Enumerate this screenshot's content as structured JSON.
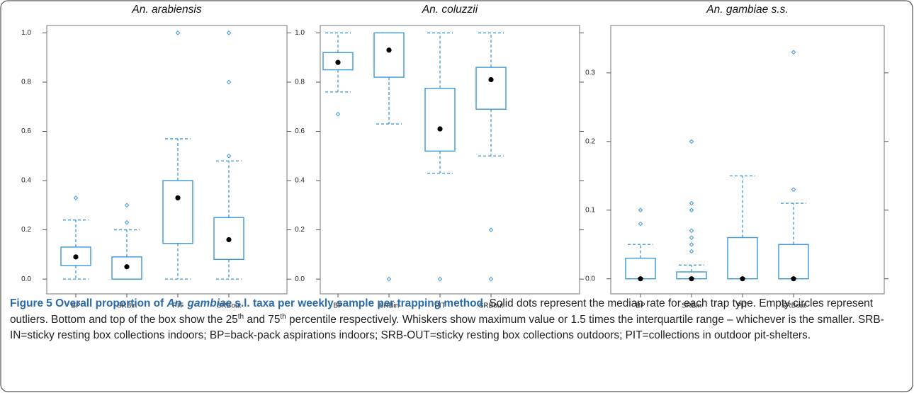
{
  "chart_data": [
    {
      "type": "box",
      "title": "An. arabiensis",
      "categories": [
        "BP",
        "SRBin",
        "PIT",
        "SRBout"
      ],
      "boxes": [
        {
          "whisker_low": 0,
          "q1": 0.055,
          "median": 0.09,
          "q3": 0.13,
          "whisker_high": 0.24,
          "outliers": [
            0.33
          ]
        },
        {
          "whisker_low": 0,
          "q1": 0,
          "median": 0.05,
          "q3": 0.09,
          "whisker_high": 0.2,
          "outliers": [
            0.23,
            0.3
          ]
        },
        {
          "whisker_low": 0,
          "q1": 0.145,
          "median": 0.33,
          "q3": 0.4,
          "whisker_high": 0.57,
          "outliers": [
            1.0
          ]
        },
        {
          "whisker_low": 0,
          "q1": 0.08,
          "median": 0.16,
          "q3": 0.25,
          "whisker_high": 0.48,
          "outliers": [
            0.5,
            0.8,
            1.0
          ]
        }
      ],
      "color": "#3a98d8",
      "ylim": [
        -0.06,
        1.03
      ],
      "yticks": [
        {
          "value": 0,
          "label": "0.0"
        },
        0.2,
        0.4,
        0.6,
        0.8,
        {
          "value": 1,
          "label": "1.0"
        }
      ]
    },
    {
      "type": "box",
      "title": "An. coluzzii",
      "categories": [
        "BP",
        "SRBin",
        "PIT",
        "SRBout"
      ],
      "boxes": [
        {
          "whisker_low": 0.76,
          "q1": 0.85,
          "median": 0.88,
          "q3": 0.92,
          "whisker_high": 1.0,
          "outliers": [
            0.67
          ]
        },
        {
          "whisker_low": 0.63,
          "q1": 0.82,
          "median": 0.93,
          "q3": 1.0,
          "whisker_high": 1.0,
          "outliers": [
            0
          ]
        },
        {
          "whisker_low": 0.43,
          "q1": 0.52,
          "median": 0.61,
          "q3": 0.775,
          "whisker_high": 1.0,
          "outliers": [
            0
          ]
        },
        {
          "whisker_low": 0.5,
          "q1": 0.69,
          "median": 0.81,
          "q3": 0.86,
          "whisker_high": 1.0,
          "outliers": [
            0.2,
            0
          ]
        }
      ],
      "color": "#3a98d8",
      "ylim": [
        -0.06,
        1.03
      ],
      "yticks": [
        {
          "value": 0,
          "label": "0.0"
        },
        0.2,
        0.4,
        0.6,
        0.8,
        {
          "value": 1,
          "label": "1.0"
        }
      ]
    },
    {
      "type": "box",
      "title": "An. gambiae s.s.",
      "categories": [
        "BP",
        "SRBin",
        "PIT",
        "SRBout"
      ],
      "boxes": [
        {
          "whisker_low": 0,
          "q1": 0,
          "median": 0,
          "q3": 0.03,
          "whisker_high": 0.05,
          "outliers": [
            0.08,
            0.1
          ]
        },
        {
          "whisker_low": 0,
          "q1": 0,
          "median": 0,
          "q3": 0.01,
          "whisker_high": 0.02,
          "outliers": [
            0.04,
            0.05,
            0.06,
            0.07,
            0.1,
            0.11,
            0.2
          ]
        },
        {
          "whisker_low": 0,
          "q1": 0,
          "median": 0,
          "q3": 0.06,
          "whisker_high": 0.15,
          "outliers": []
        },
        {
          "whisker_low": 0,
          "q1": 0,
          "median": 0,
          "q3": 0.05,
          "whisker_high": 0.11,
          "outliers": [
            0.13,
            0.33
          ]
        }
      ],
      "color": "#3a98d8",
      "ylim": [
        -0.022,
        0.369
      ],
      "yticks": [
        {
          "value": 0,
          "label": "0.0"
        },
        0.1,
        0.2,
        0.3
      ]
    }
  ],
  "caption": {
    "heading": [
      "Figure 5 Overall proportion of ",
      "An. gambiae",
      " s.l. taxa per weekly sample per trapping method."
    ],
    "body": [
      " Solid dots represent the median rate for each trap type. Empty circles represent outliers. Bottom and top of the box show the 25",
      "th",
      " and 75",
      "th",
      " percentile respectively. Whiskers show maximum value or 1.5 times the interquartile range – whichever is the smaller. SRB-IN=sticky resting box collections indoors; BP=back-pack aspirations indoors; SRB-OUT=sticky resting box collections outdoors; PIT=collections in outdoor pit-shelters."
    ]
  }
}
